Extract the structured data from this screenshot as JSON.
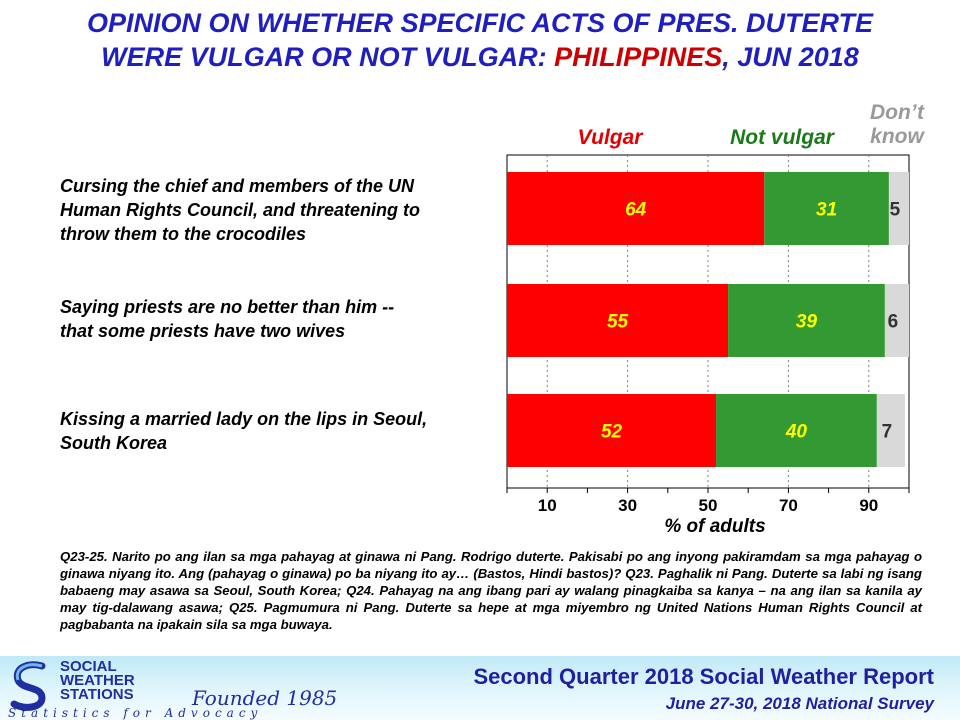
{
  "title_line1": "OPINION ON WHETHER SPECIFIC ACTS OF PRES. DUTERTE",
  "title_line2_a": "WERE VULGAR OR NOT VULGAR: ",
  "title_line2_b": "PHILIPPINES",
  "title_line2_c": ", JUN 2018",
  "legend": {
    "vulgar": "Vulgar",
    "not_vulgar": "Not vulgar",
    "dont_know_1": "Don’t",
    "dont_know_2": "know"
  },
  "colors": {
    "vulgar": "#ff0000",
    "not_vulgar": "#339933",
    "dont_know": "#d9d9d9",
    "title": "#1f1fc0"
  },
  "chart_data": {
    "type": "bar",
    "orientation": "horizontal-stacked",
    "categories": [
      "Cursing the chief and members of the UN Human Rights Council, and threatening to throw them to the crocodiles",
      "Saying priests are no better than him -- that some priests have two wives",
      "Kissing a married lady on the lips in Seoul, South Korea"
    ],
    "series": [
      {
        "name": "Vulgar",
        "values": [
          64,
          55,
          52
        ]
      },
      {
        "name": "Not vulgar",
        "values": [
          31,
          39,
          40
        ]
      },
      {
        "name": "Don’t know",
        "values": [
          5,
          6,
          7
        ]
      }
    ],
    "xlabel": "% of adults",
    "xticks": [
      10,
      30,
      50,
      70,
      90
    ],
    "xlim": [
      0,
      100
    ],
    "grid": "vertical-dashed"
  },
  "cat_lines": [
    [
      "Cursing the chief and members of the UN",
      "Human Rights Council, and threatening to",
      "throw them to the crocodiles"
    ],
    [
      "Saying priests are no better than him --",
      "that some priests have two wives"
    ],
    [
      "Kissing a married lady on the lips in Seoul,",
      "South Korea"
    ]
  ],
  "note": "Q23-25. Narito po ang ilan sa mga pahayag at ginawa ni Pang. Rodrigo duterte. Pakisabi po ang inyong pakiramdam sa mga pahayag o ginawa niyang ito. Ang (pahayag o ginawa) po ba niyang ito ay… (Bastos, Hindi bastos)? Q23. Paghalik ni Pang. Duterte sa labi ng isang babaeng may asawa sa Seoul, South Korea; Q24. Pahayag na ang ibang pari ay walang pinagkaiba sa kanya – na ang ilan sa kanila ay may tig-dalawang asawa; Q25. Pagmumura ni Pang. Duterte sa hepe at mga miyembro ng United Nations Human Rights Council at pagbabanta na ipakain sila sa mga buwaya.",
  "footer": {
    "org_1": "SOCIAL",
    "org_2": "WEATHER",
    "org_3": "STATIONS",
    "founded": "Founded 1985",
    "tagline": "Statistics for Advocacy",
    "report": "Second Quarter 2018 Social Weather Report",
    "survey": "June 27-30, 2018 National Survey"
  }
}
